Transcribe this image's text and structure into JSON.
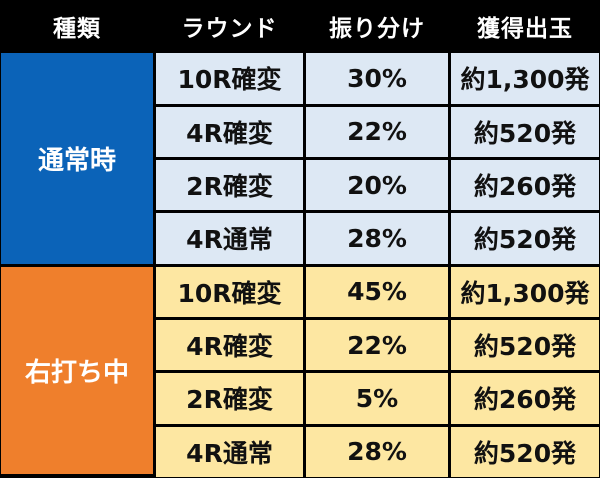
{
  "headers": [
    "種類",
    "ラウンド",
    "振り分け",
    "獲得出玉"
  ],
  "groups": [
    {
      "mode": "通常時",
      "rows": [
        {
          "round": "10R確変",
          "share": "30%",
          "payout": "約1,300発"
        },
        {
          "round": "4R確変",
          "share": "22%",
          "payout": "約520発"
        },
        {
          "round": "2R確変",
          "share": "20%",
          "payout": "約260発"
        },
        {
          "round": "4R通常",
          "share": "28%",
          "payout": "約520発"
        }
      ]
    },
    {
      "mode": "右打ち中",
      "rows": [
        {
          "round": "10R確変",
          "share": "45%",
          "payout": "約1,300発"
        },
        {
          "round": "4R確変",
          "share": "22%",
          "payout": "約520発"
        },
        {
          "round": "2R確変",
          "share": "5%",
          "payout": "約260発"
        },
        {
          "round": "4R通常",
          "share": "28%",
          "payout": "約520発"
        }
      ]
    }
  ],
  "colors": {
    "header_bg": "#000000",
    "normal_mode_bg": "#0b63b8",
    "normal_cell_bg": "#dde8f4",
    "rush_mode_bg": "#ef7f2c",
    "rush_cell_bg": "#fde7a2"
  }
}
